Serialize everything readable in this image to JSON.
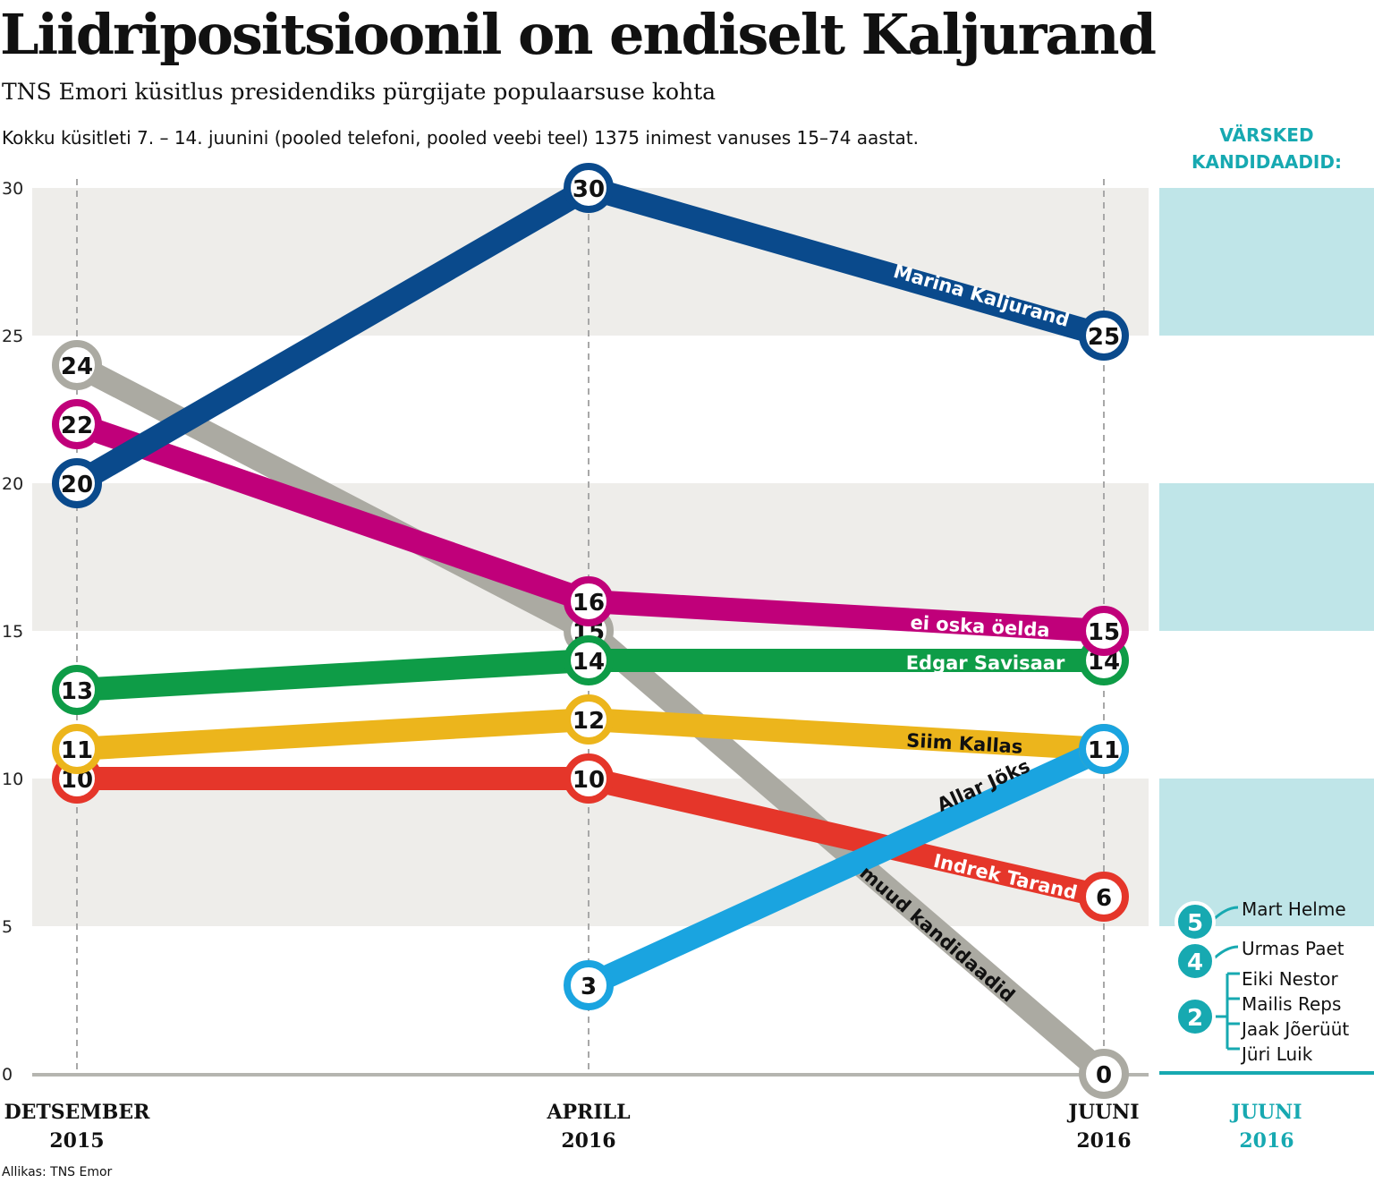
{
  "header": {
    "title": "Liidripositsioonil on endiselt Kaljurand",
    "subtitle": "TNS Emori küsitlus presidendiks pürgijate populaarsuse kohta",
    "description": "Kokku küsitleti 7. – 14. juunini (pooled telefoni, pooled veebi teel) 1375 inimest vanuses 15–74 aastat.",
    "source": "Allikas: TNS Emor"
  },
  "chart_data": {
    "type": "line",
    "title": "Liidripositsioonil on endiselt Kaljurand",
    "categories": [
      {
        "line1": "DETSEMBER",
        "line2": "2015"
      },
      {
        "line1": "APRILL",
        "line2": "2016"
      },
      {
        "line1": "JUUNI",
        "line2": "2016"
      }
    ],
    "ylim": [
      0,
      30
    ],
    "yticks": [
      "0",
      "5",
      "10",
      "15",
      "20",
      "25",
      "30"
    ],
    "grid": "alternating bands",
    "series": [
      {
        "name": "muud kandidaadid",
        "color": "#abaaa2",
        "values": [
          24,
          15,
          0
        ]
      },
      {
        "name": "Indrek Tarand",
        "color": "#e5362a",
        "values": [
          10,
          10,
          6
        ]
      },
      {
        "name": "Siim Kallas",
        "color": "#ecb51c",
        "values": [
          11,
          12,
          11
        ]
      },
      {
        "name": "Edgar Savisaar",
        "color": "#0e9c47",
        "values": [
          13,
          14,
          14
        ]
      },
      {
        "name": "ei oska öelda",
        "color": "#c0007a",
        "values": [
          22,
          16,
          15
        ]
      },
      {
        "name": "Allar Jõks",
        "color": "#1aa4e0",
        "values": [
          null,
          3,
          11
        ]
      },
      {
        "name": "Marina Kaljurand",
        "color": "#0a4a8c",
        "values": [
          20,
          30,
          25
        ]
      }
    ],
    "new_candidates": {
      "title_line1": "VÄRSKED",
      "title_line2": "KANDIDAADID:",
      "period_line1": "JUUNI",
      "period_line2": "2016",
      "color": "#17a9b1",
      "groups": [
        {
          "value": 5,
          "names": [
            "Mart Helme"
          ]
        },
        {
          "value": 4,
          "names": [
            "Urmas Paet"
          ]
        },
        {
          "value": 2,
          "names": [
            "Eiki Nestor",
            "Mailis Reps",
            "Jaak Jõerüüt",
            "Jüri Luik"
          ]
        }
      ]
    }
  }
}
